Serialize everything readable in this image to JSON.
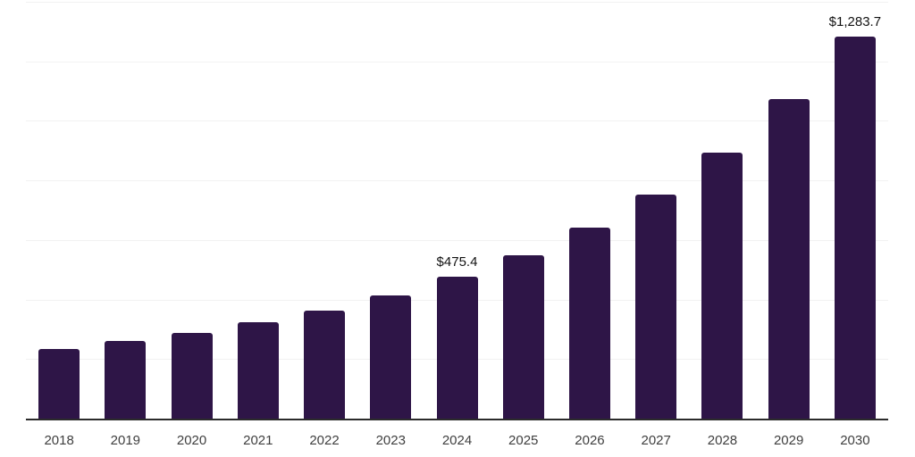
{
  "chart": {
    "background_color": "#ffffff",
    "bar_color": "#2e1547",
    "gridline_color": "#f2f2f2",
    "axis_line_color": "#2b2b2b",
    "tick_label_color": "#3f3f3f",
    "data_label_color": "#121212"
  },
  "chart_data": {
    "type": "bar",
    "categories": [
      "2018",
      "2019",
      "2020",
      "2021",
      "2022",
      "2023",
      "2024",
      "2025",
      "2026",
      "2027",
      "2028",
      "2029",
      "2030"
    ],
    "values": [
      234,
      262,
      288,
      325,
      363,
      414,
      475.4,
      550,
      642,
      753,
      892,
      1074,
      1283.7
    ],
    "point_labels": {
      "2024": "$475.4",
      "2030": "$1,283.7"
    },
    "xlabel": "",
    "ylabel": "",
    "ylim": [
      0,
      1400
    ],
    "gridline_step": 200,
    "grid": true,
    "legend": false,
    "y_axis_tick_labels_visible": false
  }
}
